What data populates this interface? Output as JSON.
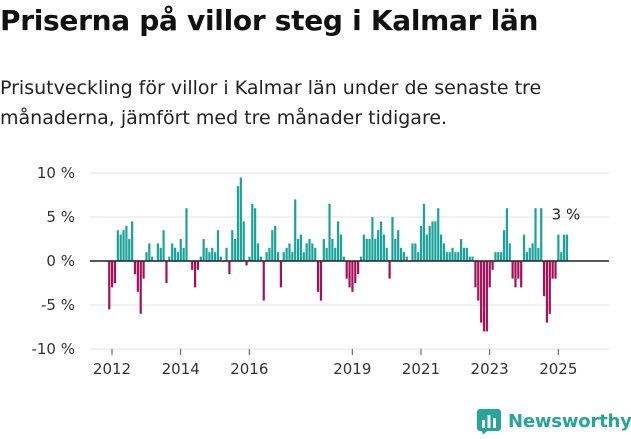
{
  "header": {
    "title": "Priserna på villor steg i Kalmar län",
    "subtitle": "Prisutveckling för villor i Kalmar län under de senaste tre månaderna, jämfört med tre månader tidigare."
  },
  "logo": {
    "text": "Newsworthy",
    "icon": "bar-chart-logo-icon",
    "color": "#26a59a"
  },
  "colors": {
    "positive": "#1aa39a",
    "negative": "#a3115a",
    "axis": "#222222",
    "grid": "#e3e3e3"
  },
  "chart_data": {
    "type": "bar",
    "title": "",
    "xlabel": "",
    "ylabel": "",
    "ylim": [
      -10,
      10
    ],
    "y_ticks": [
      10,
      5,
      0,
      -5,
      -10
    ],
    "y_tick_labels": [
      "10 %",
      "5 %",
      "0 %",
      "-5 %",
      "-10 %"
    ],
    "x_start": 2011.92,
    "x_step": 0.08333,
    "x_ticks": [
      2012,
      2014,
      2016,
      2019,
      2021,
      2023,
      2025
    ],
    "x_tick_labels": [
      "2012",
      "2014",
      "2016",
      "2019",
      "2021",
      "2023",
      "2025"
    ],
    "grid": true,
    "annotation": {
      "label": "3 %",
      "value": 3
    },
    "values": [
      -5.5,
      -3,
      -2.5,
      3.5,
      3,
      3.5,
      4,
      2.5,
      4.5,
      -1.5,
      -3.5,
      -6,
      -2,
      1,
      2,
      0.5,
      0,
      2,
      1.5,
      3.5,
      -2.5,
      0.5,
      2,
      1.5,
      1,
      2.5,
      1.5,
      6,
      0,
      -1,
      -3,
      -1,
      0.5,
      2.5,
      1.5,
      1,
      1.5,
      1,
      3.5,
      0.5,
      0,
      1.5,
      -1.5,
      3.5,
      2.5,
      8.5,
      9.5,
      4.5,
      -0.5,
      0.5,
      6.5,
      6,
      2,
      0.5,
      -4.5,
      1,
      1.5,
      3.5,
      4,
      1,
      -3,
      1,
      1.5,
      2,
      1,
      7,
      2.5,
      3,
      1,
      2,
      2.5,
      2,
      1.5,
      -3.5,
      -4.5,
      2.5,
      1.5,
      6.5,
      2.5,
      1.5,
      4.5,
      3,
      0.5,
      -2,
      -3,
      -3.5,
      -2.5,
      -1.5,
      0.5,
      3,
      2.5,
      2.5,
      5,
      2.5,
      3.5,
      4.5,
      3,
      1.5,
      -2,
      5,
      2.5,
      3.5,
      1.5,
      1,
      0.5,
      0,
      2,
      2,
      1,
      4,
      6.5,
      3,
      4,
      4.5,
      4.5,
      6,
      3,
      2,
      1,
      1,
      1.5,
      1,
      1,
      2.5,
      1.5,
      1.5,
      0.5,
      0.5,
      -3,
      -4.5,
      -7,
      -8,
      -8,
      -3,
      -1,
      1,
      1,
      1,
      3.5,
      6,
      2,
      -2,
      -3,
      -2,
      -3,
      3,
      1,
      1.5,
      2,
      6,
      1.5,
      6,
      -4,
      -7,
      -6,
      -2,
      -2,
      3,
      1,
      3,
      3
    ]
  }
}
